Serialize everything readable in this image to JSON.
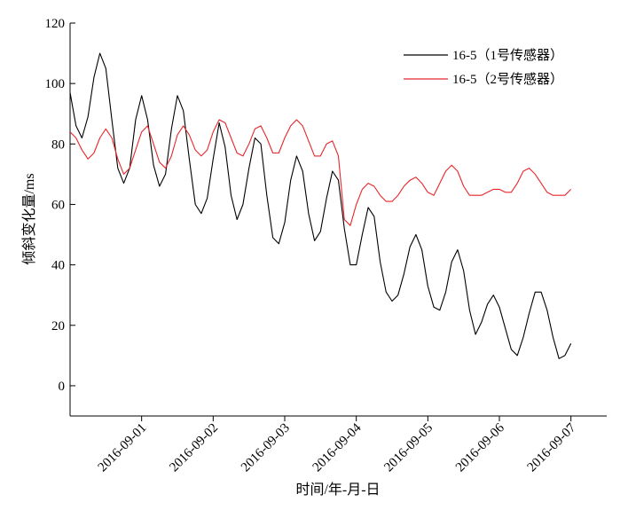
{
  "chart_data": {
    "type": "line",
    "xlabel": "时间/年-月-日",
    "ylabel": "倾斜变化量/ms",
    "xlim": [
      "2016-08-31T00:00",
      "2016-09-07T12:00"
    ],
    "ylim": [
      -10,
      120
    ],
    "x_ticks": [
      "2016-09-01",
      "2016-09-02",
      "2016-09-03",
      "2016-09-04",
      "2016-09-05",
      "2016-09-06",
      "2016-09-07"
    ],
    "y_ticks": [
      "0",
      "20",
      "40",
      "60",
      "80",
      "100",
      "120"
    ],
    "grid": false,
    "legend_position": "top-right",
    "series": [
      {
        "name": "16-5（1号传感器）",
        "color": "#000000",
        "x": [
          "2016-08-31T00:00",
          "2016-08-31T02:00",
          "2016-08-31T04:00",
          "2016-08-31T06:00",
          "2016-08-31T08:00",
          "2016-08-31T10:00",
          "2016-08-31T12:00",
          "2016-08-31T14:00",
          "2016-08-31T16:00",
          "2016-08-31T18:00",
          "2016-08-31T20:00",
          "2016-08-31T22:00",
          "2016-09-01T00:00",
          "2016-09-01T02:00",
          "2016-09-01T04:00",
          "2016-09-01T06:00",
          "2016-09-01T08:00",
          "2016-09-01T10:00",
          "2016-09-01T12:00",
          "2016-09-01T14:00",
          "2016-09-01T16:00",
          "2016-09-01T18:00",
          "2016-09-01T20:00",
          "2016-09-01T22:00",
          "2016-09-02T00:00",
          "2016-09-02T02:00",
          "2016-09-02T04:00",
          "2016-09-02T06:00",
          "2016-09-02T08:00",
          "2016-09-02T10:00",
          "2016-09-02T12:00",
          "2016-09-02T14:00",
          "2016-09-02T16:00",
          "2016-09-02T18:00",
          "2016-09-02T20:00",
          "2016-09-02T22:00",
          "2016-09-03T00:00",
          "2016-09-03T02:00",
          "2016-09-03T04:00",
          "2016-09-03T06:00",
          "2016-09-03T08:00",
          "2016-09-03T10:00",
          "2016-09-03T12:00",
          "2016-09-03T14:00",
          "2016-09-03T16:00",
          "2016-09-03T18:00",
          "2016-09-03T20:00",
          "2016-09-03T22:00",
          "2016-09-04T00:00",
          "2016-09-04T02:00",
          "2016-09-04T04:00",
          "2016-09-04T06:00",
          "2016-09-04T08:00",
          "2016-09-04T10:00",
          "2016-09-04T12:00",
          "2016-09-04T14:00",
          "2016-09-04T16:00",
          "2016-09-04T18:00",
          "2016-09-04T20:00",
          "2016-09-04T22:00",
          "2016-09-05T00:00",
          "2016-09-05T02:00",
          "2016-09-05T04:00",
          "2016-09-05T06:00",
          "2016-09-05T08:00",
          "2016-09-05T10:00",
          "2016-09-05T12:00",
          "2016-09-05T14:00",
          "2016-09-05T16:00",
          "2016-09-05T18:00",
          "2016-09-05T20:00",
          "2016-09-05T22:00",
          "2016-09-06T00:00",
          "2016-09-06T02:00",
          "2016-09-06T04:00",
          "2016-09-06T06:00",
          "2016-09-06T08:00",
          "2016-09-06T10:00",
          "2016-09-06T12:00",
          "2016-09-06T14:00",
          "2016-09-06T16:00",
          "2016-09-06T18:00",
          "2016-09-06T20:00",
          "2016-09-06T22:00",
          "2016-09-07T00:00"
        ],
        "values": [
          97,
          86,
          82,
          89,
          102,
          110,
          105,
          88,
          72,
          67,
          72,
          88,
          96,
          88,
          73,
          66,
          70,
          85,
          96,
          91,
          75,
          60,
          57,
          62,
          75,
          87,
          79,
          63,
          55,
          60,
          72,
          82,
          80,
          63,
          49,
          47,
          54,
          68,
          76,
          71,
          57,
          48,
          51,
          62,
          71,
          68,
          52,
          40,
          40,
          50,
          59,
          56,
          41,
          31,
          28,
          30,
          37,
          46,
          50,
          45,
          33,
          26,
          25,
          31,
          41,
          45,
          38,
          25,
          17,
          21,
          27,
          30,
          26,
          19,
          12,
          10,
          16,
          24,
          31,
          31,
          25,
          16,
          9,
          10,
          14
        ]
      },
      {
        "name": "16-5（2号传感器）",
        "color": "#e8262b",
        "x": [
          "2016-08-31T00:00",
          "2016-08-31T02:00",
          "2016-08-31T04:00",
          "2016-08-31T06:00",
          "2016-08-31T08:00",
          "2016-08-31T10:00",
          "2016-08-31T12:00",
          "2016-08-31T14:00",
          "2016-08-31T16:00",
          "2016-08-31T18:00",
          "2016-08-31T20:00",
          "2016-08-31T22:00",
          "2016-09-01T00:00",
          "2016-09-01T02:00",
          "2016-09-01T04:00",
          "2016-09-01T06:00",
          "2016-09-01T08:00",
          "2016-09-01T10:00",
          "2016-09-01T12:00",
          "2016-09-01T14:00",
          "2016-09-01T16:00",
          "2016-09-01T18:00",
          "2016-09-01T20:00",
          "2016-09-01T22:00",
          "2016-09-02T00:00",
          "2016-09-02T02:00",
          "2016-09-02T04:00",
          "2016-09-02T06:00",
          "2016-09-02T08:00",
          "2016-09-02T10:00",
          "2016-09-02T12:00",
          "2016-09-02T14:00",
          "2016-09-02T16:00",
          "2016-09-02T18:00",
          "2016-09-02T20:00",
          "2016-09-02T22:00",
          "2016-09-03T00:00",
          "2016-09-03T02:00",
          "2016-09-03T04:00",
          "2016-09-03T06:00",
          "2016-09-03T08:00",
          "2016-09-03T10:00",
          "2016-09-03T12:00",
          "2016-09-03T14:00",
          "2016-09-03T16:00",
          "2016-09-03T18:00",
          "2016-09-03T20:00",
          "2016-09-03T22:00",
          "2016-09-04T00:00",
          "2016-09-04T02:00",
          "2016-09-04T04:00",
          "2016-09-04T06:00",
          "2016-09-04T08:00",
          "2016-09-04T10:00",
          "2016-09-04T12:00",
          "2016-09-04T14:00",
          "2016-09-04T16:00",
          "2016-09-04T18:00",
          "2016-09-04T20:00",
          "2016-09-04T22:00",
          "2016-09-05T00:00",
          "2016-09-05T02:00",
          "2016-09-05T04:00",
          "2016-09-05T06:00",
          "2016-09-05T08:00",
          "2016-09-05T10:00",
          "2016-09-05T12:00",
          "2016-09-05T14:00",
          "2016-09-05T16:00",
          "2016-09-05T18:00",
          "2016-09-05T20:00",
          "2016-09-05T22:00",
          "2016-09-06T00:00",
          "2016-09-06T02:00",
          "2016-09-06T04:00",
          "2016-09-06T06:00",
          "2016-09-06T08:00",
          "2016-09-06T10:00",
          "2016-09-06T12:00",
          "2016-09-06T14:00",
          "2016-09-06T16:00",
          "2016-09-06T18:00",
          "2016-09-06T20:00",
          "2016-09-06T22:00",
          "2016-09-07T00:00"
        ],
        "values": [
          84,
          82,
          78,
          75,
          77,
          82,
          85,
          82,
          75,
          70,
          72,
          78,
          84,
          86,
          80,
          74,
          72,
          76,
          83,
          86,
          83,
          78,
          76,
          78,
          84,
          88,
          87,
          82,
          77,
          76,
          80,
          85,
          86,
          82,
          77,
          77,
          82,
          86,
          88,
          86,
          81,
          76,
          76,
          80,
          81,
          76,
          55,
          53,
          60,
          65,
          67,
          66,
          63,
          61,
          61,
          63,
          66,
          68,
          69,
          67,
          64,
          63,
          67,
          71,
          73,
          71,
          66,
          63,
          63,
          63,
          64,
          65,
          65,
          64,
          64,
          67,
          71,
          72,
          70,
          67,
          64,
          63,
          63,
          63,
          65
        ]
      }
    ]
  }
}
